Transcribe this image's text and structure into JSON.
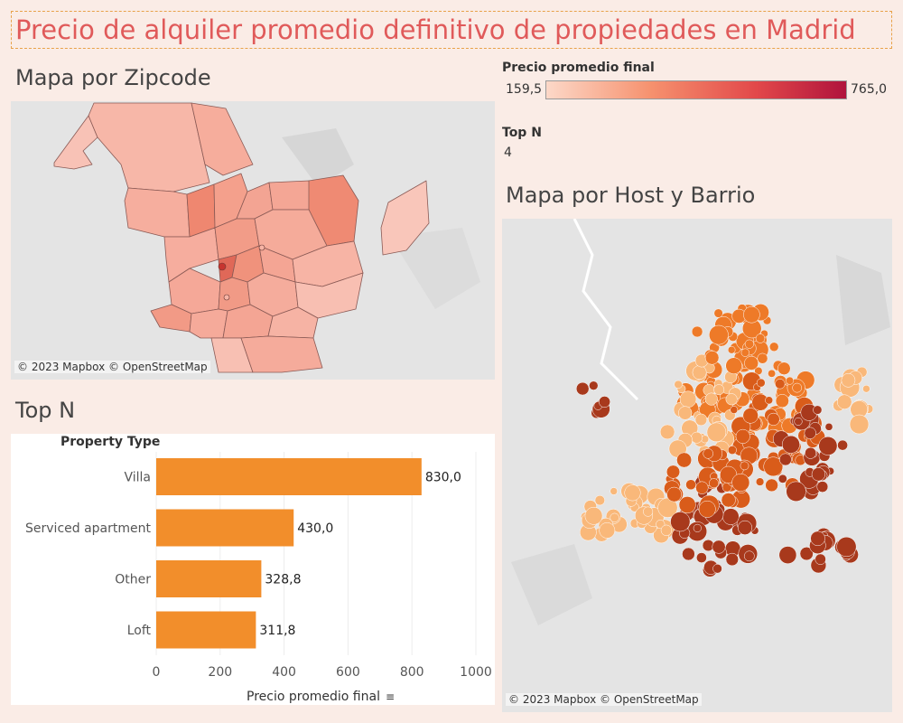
{
  "dashboard": {
    "title": "Precio de alquiler promedio definitivo de propiedades en Madrid"
  },
  "zipcode_map": {
    "title": "Mapa por Zipcode",
    "attribution": "© 2023 Mapbox © OpenStreetMap"
  },
  "legend": {
    "title": "Precio promedio final",
    "min_label": "159,5",
    "max_label": "765,0",
    "colors": [
      "#fcd8c8",
      "#f6916e",
      "#e2484a",
      "#b0133c"
    ]
  },
  "top_n_param": {
    "label": "Top N",
    "value": "4"
  },
  "host_map": {
    "title": "Mapa por Host y Barrio",
    "attribution": "© 2023 Mapbox © OpenStreetMap",
    "colors": [
      "#f9b87a",
      "#ee7a28",
      "#d95c1a",
      "#a8391c"
    ]
  },
  "bar_chart": {
    "title": "Top N",
    "row_header": "Property Type",
    "x_axis_title": "Precio promedio final",
    "sort_icon": "sort-descending-icon",
    "bar_color": "#f28e2b"
  },
  "chart_data": {
    "type": "bar",
    "orientation": "horizontal",
    "categories": [
      "Villa",
      "Serviced apartment",
      "Other",
      "Loft"
    ],
    "values": [
      830.0,
      430.0,
      328.8,
      311.8
    ],
    "value_labels": [
      "830,0",
      "430,0",
      "328,8",
      "311,8"
    ],
    "xlabel": "Precio promedio final",
    "ylabel": "Property Type",
    "xlim": [
      0,
      1000
    ],
    "xticks": [
      0,
      200,
      400,
      600,
      800,
      1000
    ],
    "xtick_labels": [
      "0",
      "200",
      "400",
      "600",
      "800",
      "1000"
    ],
    "grid": "vertical"
  }
}
